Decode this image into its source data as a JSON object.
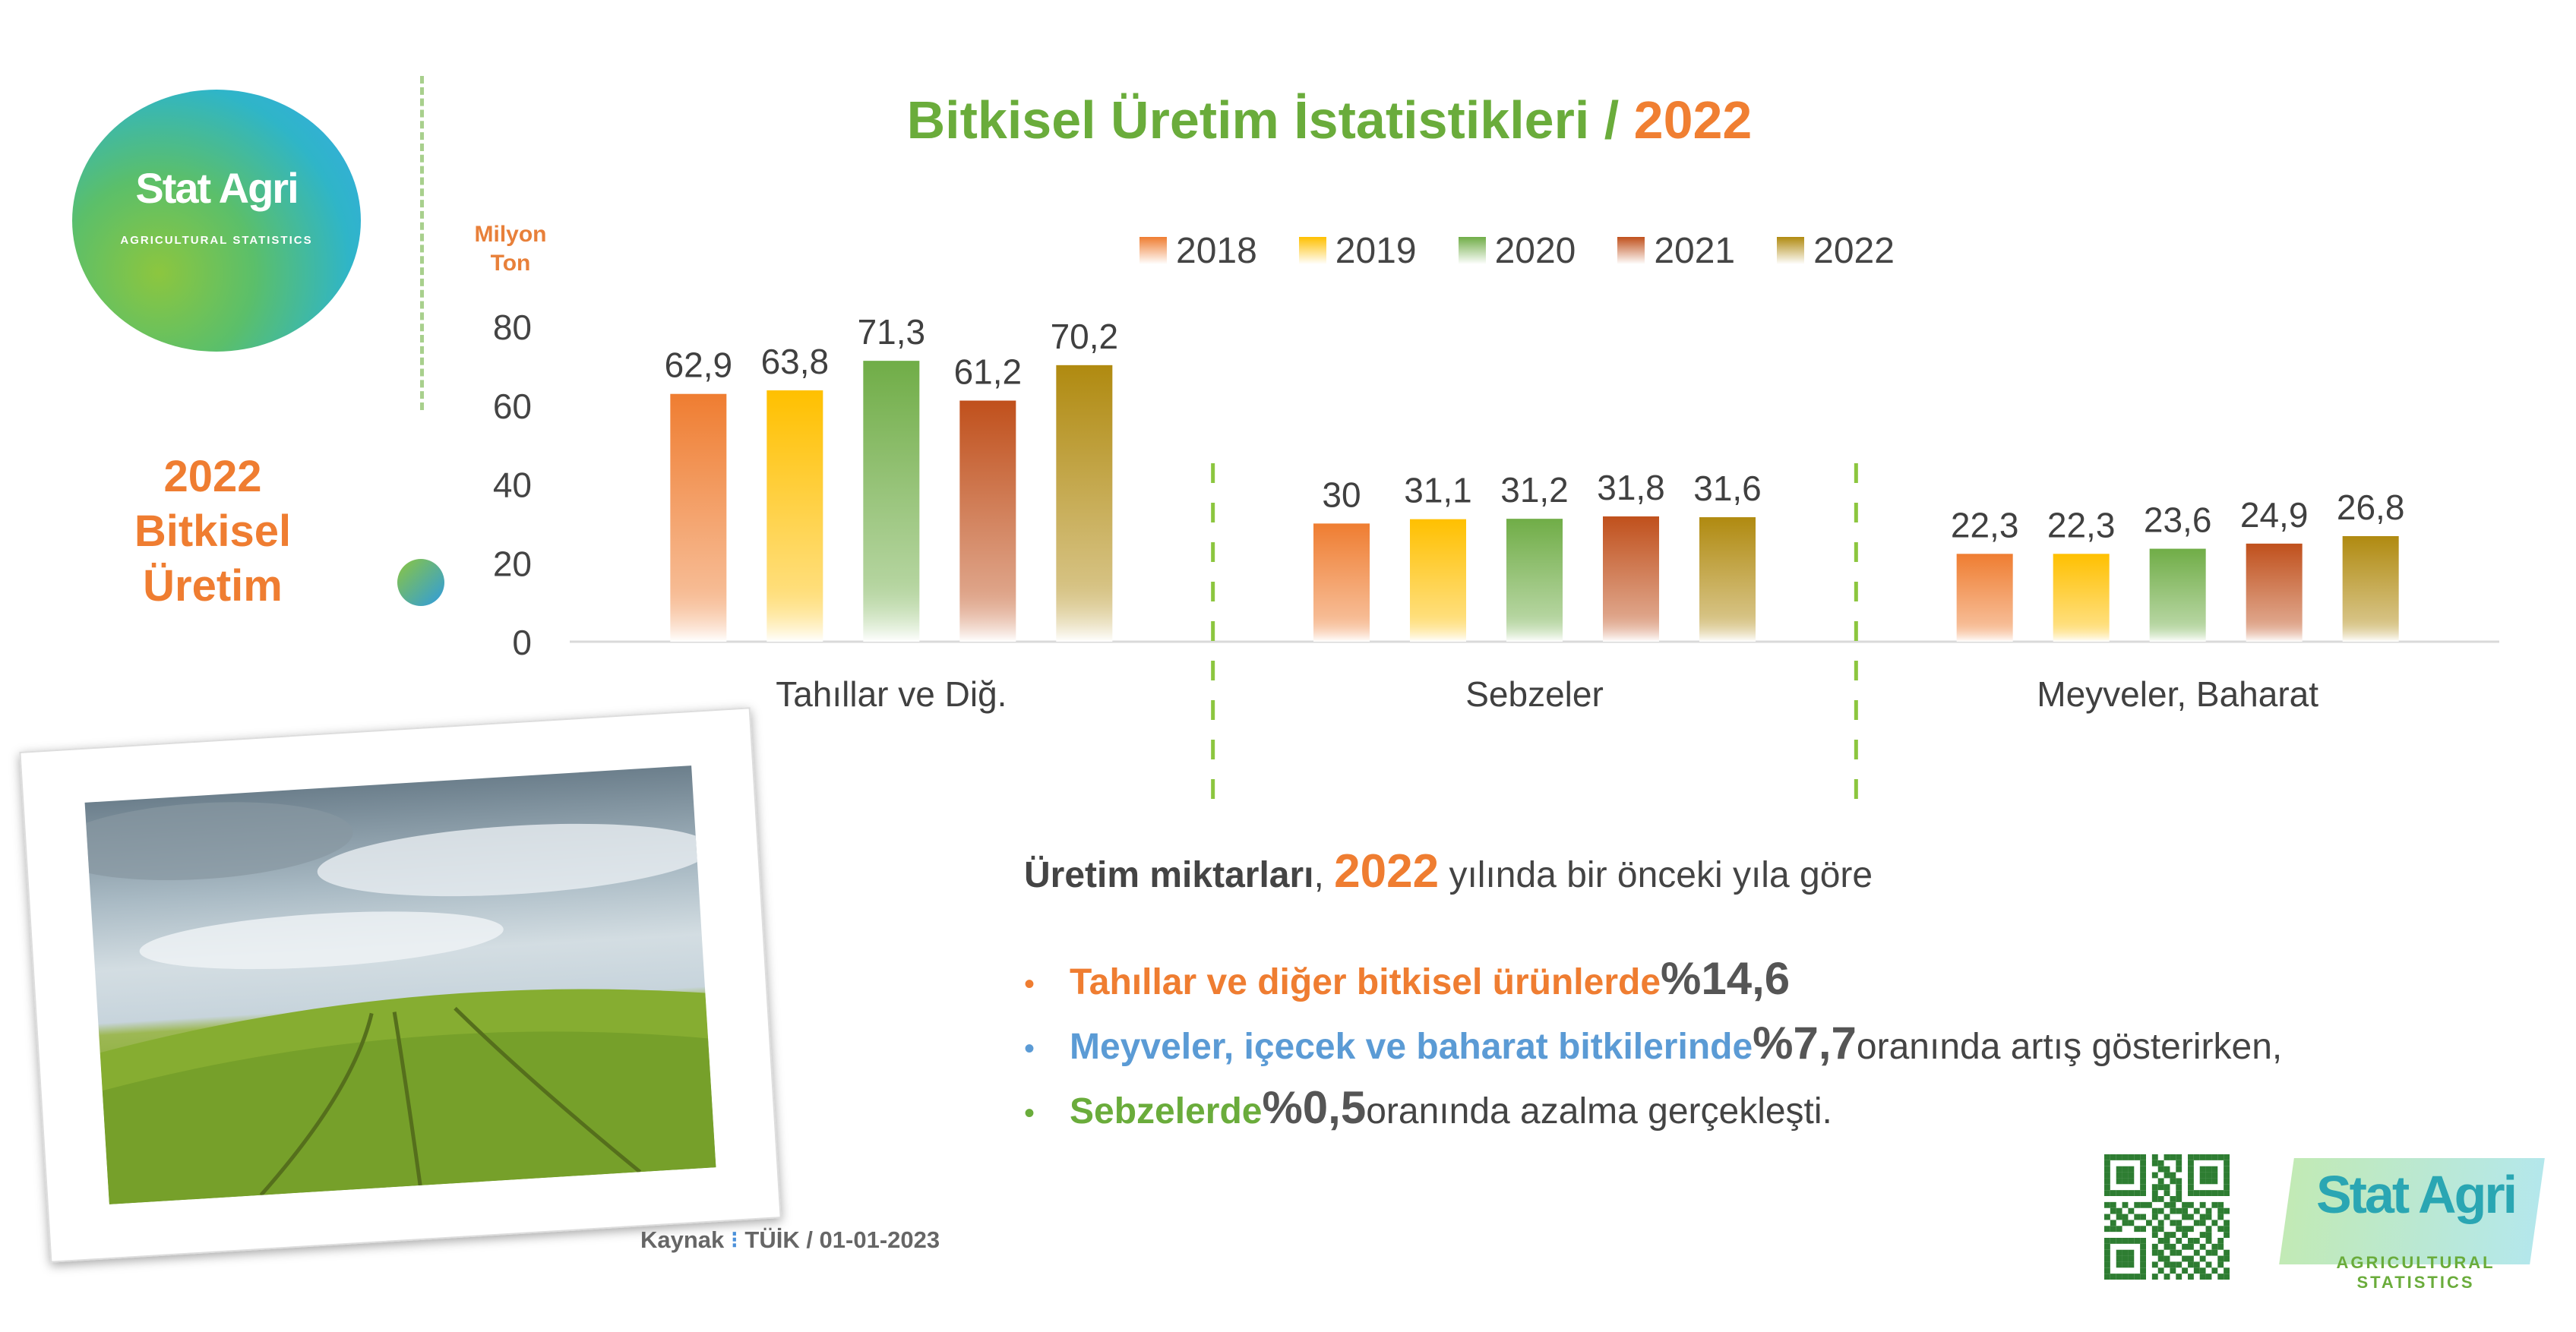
{
  "logo": {
    "name": "Stat Agri",
    "tagline": "AGRICULTURAL STATISTICS"
  },
  "title": {
    "main": "Bitkisel Üretim İstatistikleri / ",
    "year": "2022"
  },
  "side_title": {
    "line1": "2022",
    "line2": "Bitkisel",
    "line3": "Üretim"
  },
  "colors": {
    "2018": "#ef7d31",
    "2019": "#ffc000",
    "2020": "#70ad47",
    "2021": "#c0501c",
    "2022": "#b08a10",
    "title_green": "#6aac3b",
    "accent_orange": "#ef7d31",
    "accent_blue": "#5b9bd5"
  },
  "chart_data": {
    "type": "bar",
    "title": "Bitkisel Üretim İstatistikleri / 2022",
    "ylabel": "Milyon Ton",
    "ylim": [
      0,
      80
    ],
    "yticks": [
      "0",
      "20",
      "40",
      "60",
      "80"
    ],
    "categories": [
      "Tahıllar ve Diğ.",
      "Sebzeler",
      "Meyveler, Baharat"
    ],
    "legend_position": "top",
    "series": [
      {
        "name": "2018",
        "values": [
          62.9,
          30,
          22.3
        ],
        "labels": [
          "62,9",
          "30",
          "22,3"
        ]
      },
      {
        "name": "2019",
        "values": [
          63.8,
          31.1,
          22.3
        ],
        "labels": [
          "63,8",
          "31,1",
          "22,3"
        ]
      },
      {
        "name": "2020",
        "values": [
          71.3,
          31.2,
          23.6
        ],
        "labels": [
          "71,3",
          "31,2",
          "23,6"
        ]
      },
      {
        "name": "2021",
        "values": [
          61.2,
          31.8,
          24.9
        ],
        "labels": [
          "61,2",
          "31,8",
          "24,9"
        ]
      },
      {
        "name": "2022",
        "values": [
          70.2,
          31.6,
          26.8
        ],
        "labels": [
          "70,2",
          "31,6",
          "26,8"
        ]
      }
    ]
  },
  "summary": {
    "lead": "Üretim miktarları",
    "comma": ", ",
    "year": "2022",
    "rest": " yılında bir önceki yıla göre"
  },
  "bullets": [
    {
      "dot": "•",
      "label": "Tahıllar ve diğer bitkisel ürünlerde ",
      "pct": "%14,6",
      "tail": ""
    },
    {
      "dot": "•",
      "label": "Meyveler, içecek ve baharat bitkilerinde ",
      "pct": "%7,7",
      "tail": " oranında artış gösterirken,"
    },
    {
      "dot": "•",
      "label": "Sebzelerde ",
      "pct": "%0,5",
      "tail": " oranında azalma gerçekleşti."
    }
  ],
  "source": {
    "label": "Kaynak",
    "sep": " ⁝ ",
    "value": "TÜİK / 01-01-2023"
  }
}
